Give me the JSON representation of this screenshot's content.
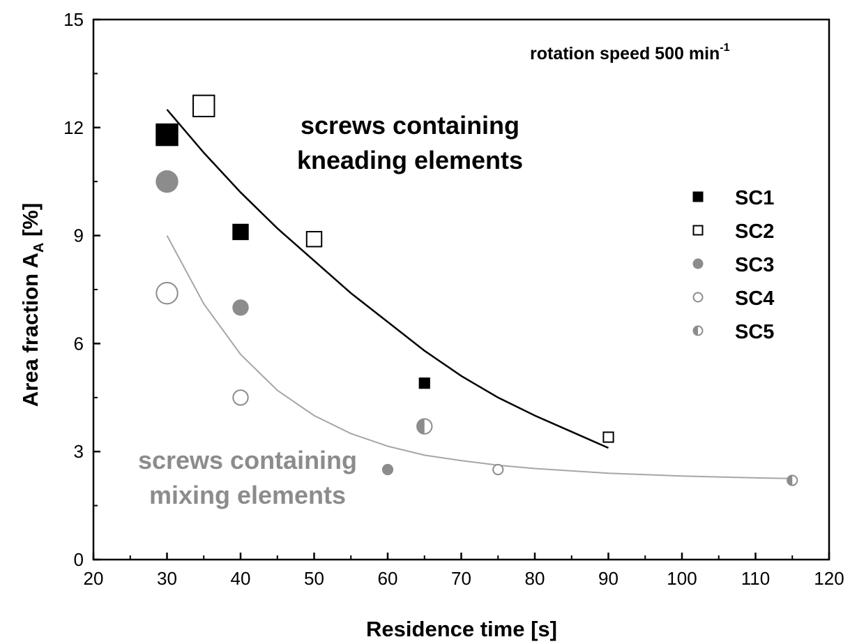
{
  "chart_data": {
    "type": "scatter",
    "xlabel": "Residence time [s]",
    "ylabel_main": "Area fraction A",
    "ylabel_sub": "A",
    "ylabel_unit": " [%]",
    "xlim": [
      20,
      120
    ],
    "ylim": [
      0,
      15
    ],
    "x_ticks": [
      20,
      30,
      40,
      50,
      60,
      70,
      80,
      90,
      100,
      110,
      120
    ],
    "y_ticks": [
      0,
      3,
      6,
      9,
      12,
      15
    ],
    "x_tick_labels": [
      "20",
      "30",
      "40",
      "50",
      "60",
      "70",
      "80",
      "90",
      "100",
      "110",
      "120"
    ],
    "y_tick_labels": [
      "0",
      "3",
      "6",
      "9",
      "12",
      "15"
    ],
    "annotations": {
      "speed_main": "rotation speed 500 min",
      "speed_sup": "-1",
      "kneading_line1": "screws containing",
      "kneading_line2": "kneading elements",
      "mixing_line1": "screws containing",
      "mixing_line2": "mixing elements"
    },
    "colors": {
      "black": "#000000",
      "gray": "#8c8c8c",
      "light_gray": "#a6a6a6",
      "white": "#ffffff"
    },
    "legend_position": "right",
    "series": [
      {
        "name": "SC1",
        "marker": "square-filled",
        "color": "#000000",
        "points": [
          {
            "x": 30,
            "y": 11.8,
            "s": 1.8
          },
          {
            "x": 40,
            "y": 9.1,
            "s": 1.3
          },
          {
            "x": 65,
            "y": 4.9,
            "s": 0.9
          }
        ]
      },
      {
        "name": "SC2",
        "marker": "square-open",
        "color": "#000000",
        "points": [
          {
            "x": 35,
            "y": 12.6,
            "s": 1.8
          },
          {
            "x": 50,
            "y": 8.9,
            "s": 1.3
          },
          {
            "x": 90,
            "y": 3.4,
            "s": 0.9
          }
        ]
      },
      {
        "name": "SC3",
        "marker": "circle-filled",
        "color": "#8c8c8c",
        "points": [
          {
            "x": 30,
            "y": 10.5,
            "s": 1.8
          },
          {
            "x": 40,
            "y": 7.0,
            "s": 1.3
          },
          {
            "x": 60,
            "y": 2.5,
            "s": 0.9
          }
        ]
      },
      {
        "name": "SC4",
        "marker": "circle-open",
        "color": "#8c8c8c",
        "points": [
          {
            "x": 30,
            "y": 7.4,
            "s": 1.8
          },
          {
            "x": 40,
            "y": 4.5,
            "s": 1.3
          },
          {
            "x": 75,
            "y": 2.5,
            "s": 0.9
          }
        ]
      },
      {
        "name": "SC5",
        "marker": "circle-half",
        "color": "#8c8c8c",
        "points": [
          {
            "x": 65,
            "y": 3.7,
            "s": 1.3
          },
          {
            "x": 115,
            "y": 2.2,
            "s": 0.9
          }
        ]
      }
    ],
    "fits": [
      {
        "name": "kneading-fit",
        "color": "#000000",
        "x": [
          30,
          35,
          40,
          45,
          50,
          55,
          60,
          65,
          70,
          75,
          80,
          85,
          90
        ],
        "y": [
          12.5,
          11.3,
          10.2,
          9.2,
          8.3,
          7.4,
          6.6,
          5.8,
          5.1,
          4.5,
          4.0,
          3.55,
          3.1
        ]
      },
      {
        "name": "mixing-fit",
        "color": "#a6a6a6",
        "x": [
          30,
          35,
          40,
          45,
          50,
          55,
          60,
          65,
          70,
          75,
          80,
          90,
          100,
          110,
          115
        ],
        "y": [
          9.0,
          7.1,
          5.7,
          4.7,
          4.0,
          3.5,
          3.15,
          2.9,
          2.75,
          2.62,
          2.53,
          2.4,
          2.32,
          2.27,
          2.25
        ]
      }
    ]
  }
}
